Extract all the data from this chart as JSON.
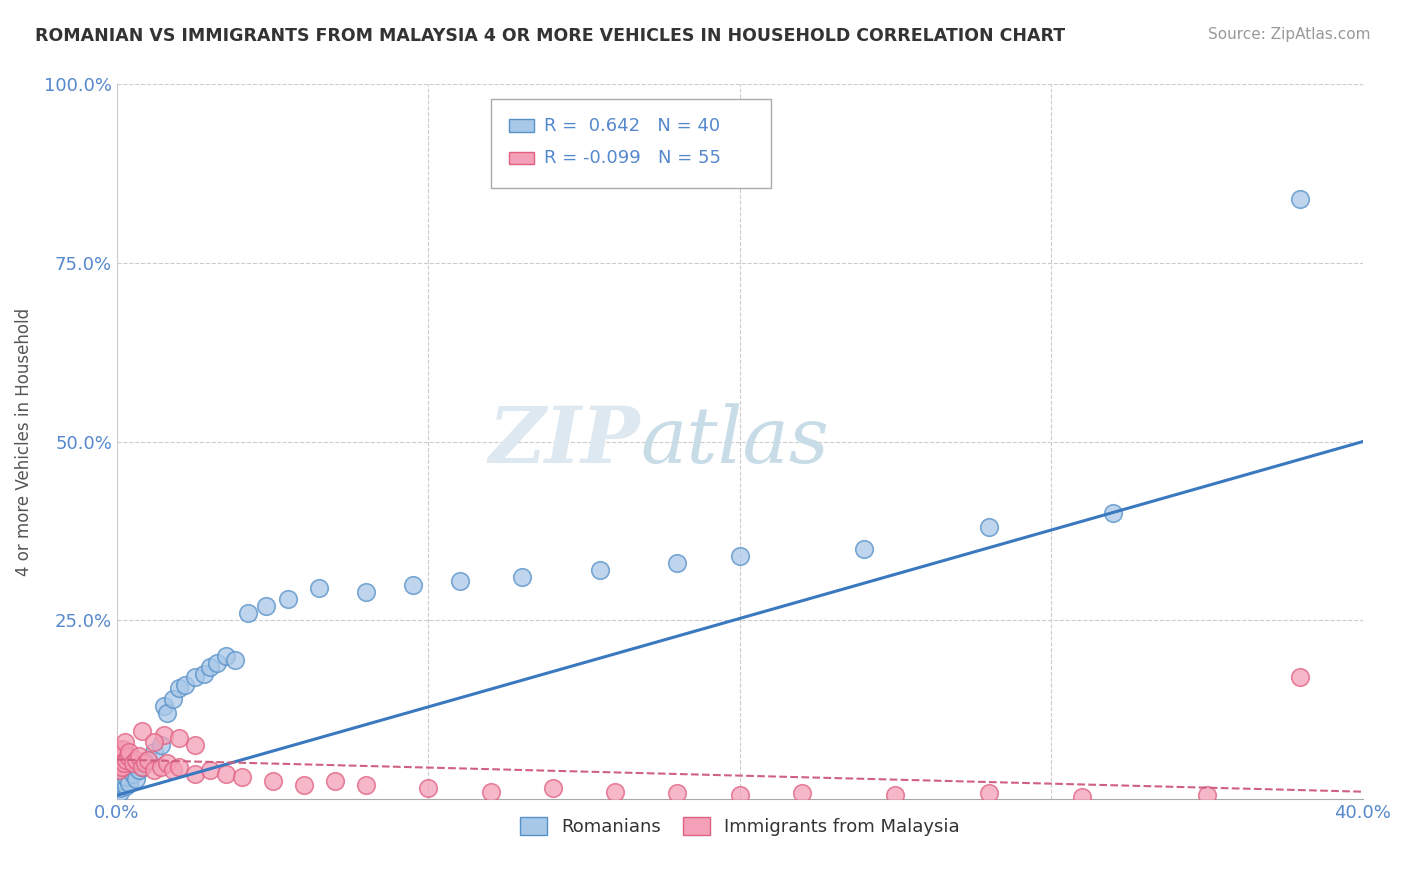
{
  "title": "ROMANIAN VS IMMIGRANTS FROM MALAYSIA 4 OR MORE VEHICLES IN HOUSEHOLD CORRELATION CHART",
  "source": "Source: ZipAtlas.com",
  "ylabel": "4 or more Vehicles in Household",
  "legend_row1": "R =  0.642   N = 40",
  "legend_row2": "R = -0.099   N = 55",
  "blue_fill": "#a8c8e8",
  "blue_edge": "#5590c8",
  "pink_fill": "#f4a0b8",
  "pink_edge": "#e06080",
  "blue_line": "#3a78c0",
  "pink_line": "#d06080",
  "watermark_color": "#dde8f0",
  "romanians_x": [
    0.001,
    0.001,
    0.002,
    0.002,
    0.003,
    0.003,
    0.004,
    0.005,
    0.006,
    0.007,
    0.008,
    0.01,
    0.012,
    0.014,
    0.015,
    0.016,
    0.018,
    0.02,
    0.022,
    0.025,
    0.028,
    0.03,
    0.032,
    0.035,
    0.038,
    0.042,
    0.048,
    0.055,
    0.065,
    0.08,
    0.095,
    0.11,
    0.13,
    0.155,
    0.18,
    0.2,
    0.24,
    0.28,
    0.32,
    0.38
  ],
  "romanians_y": [
    0.01,
    0.015,
    0.02,
    0.025,
    0.018,
    0.03,
    0.022,
    0.035,
    0.028,
    0.04,
    0.045,
    0.055,
    0.065,
    0.075,
    0.13,
    0.12,
    0.14,
    0.155,
    0.16,
    0.17,
    0.175,
    0.185,
    0.19,
    0.2,
    0.195,
    0.26,
    0.27,
    0.28,
    0.295,
    0.29,
    0.3,
    0.305,
    0.31,
    0.32,
    0.33,
    0.34,
    0.35,
    0.38,
    0.4,
    0.84
  ],
  "malaysia_x": [
    0.0002,
    0.0003,
    0.0004,
    0.0005,
    0.0006,
    0.0007,
    0.0008,
    0.0009,
    0.001,
    0.0012,
    0.0014,
    0.0016,
    0.0018,
    0.002,
    0.0022,
    0.0025,
    0.003,
    0.0035,
    0.004,
    0.005,
    0.006,
    0.007,
    0.008,
    0.009,
    0.01,
    0.012,
    0.014,
    0.016,
    0.018,
    0.02,
    0.025,
    0.03,
    0.035,
    0.04,
    0.05,
    0.06,
    0.07,
    0.08,
    0.1,
    0.12,
    0.14,
    0.16,
    0.18,
    0.2,
    0.22,
    0.25,
    0.28,
    0.31,
    0.35,
    0.38,
    0.015,
    0.02,
    0.025,
    0.008,
    0.012
  ],
  "malaysia_y": [
    0.05,
    0.06,
    0.045,
    0.055,
    0.065,
    0.04,
    0.07,
    0.05,
    0.06,
    0.055,
    0.065,
    0.045,
    0.06,
    0.07,
    0.05,
    0.08,
    0.055,
    0.06,
    0.065,
    0.05,
    0.055,
    0.06,
    0.045,
    0.05,
    0.055,
    0.04,
    0.045,
    0.05,
    0.04,
    0.045,
    0.035,
    0.04,
    0.035,
    0.03,
    0.025,
    0.02,
    0.025,
    0.02,
    0.015,
    0.01,
    0.015,
    0.01,
    0.008,
    0.005,
    0.008,
    0.005,
    0.008,
    0.003,
    0.005,
    0.17,
    0.09,
    0.085,
    0.075,
    0.095,
    0.08
  ],
  "blue_line_x0": 0.0,
  "blue_line_y0": 0.005,
  "blue_line_x1": 0.4,
  "blue_line_y1": 0.5,
  "pink_line_x0": 0.0,
  "pink_line_y0": 0.055,
  "pink_line_x1": 0.4,
  "pink_line_y1": 0.01,
  "xmin": 0.0,
  "xmax": 0.4,
  "ymin": 0.0,
  "ymax": 1.0,
  "yticks": [
    0.25,
    0.5,
    0.75,
    1.0
  ],
  "ytick_labels": [
    "25.0%",
    "50.0%",
    "75.0%",
    "100.0%"
  ]
}
